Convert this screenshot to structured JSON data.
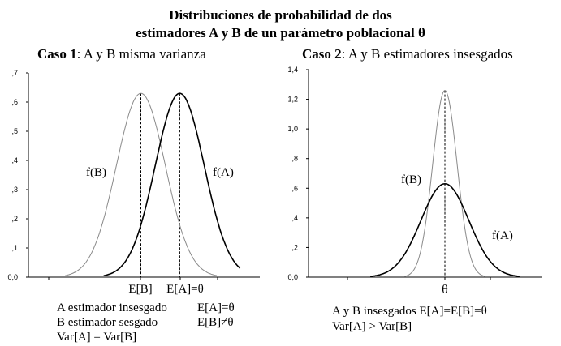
{
  "title": {
    "line1": "Distribuciones de probabilidad de dos",
    "line2": "estimadores A y B de un parámetro poblacional θ"
  },
  "chart_data": [
    {
      "type": "line",
      "heading_bold": "Caso 1",
      "heading_rest": ": A y B misma varianza",
      "ylim": [
        0,
        0.7
      ],
      "y_ticks": [
        "0,0",
        ",1",
        ",2",
        ",3",
        ",4",
        ",5",
        ",6",
        ",7"
      ],
      "x_tick_labels": [
        "E[B]",
        "E[A]=θ"
      ],
      "series": [
        {
          "name": "f(A)",
          "mean": 1.0,
          "sd": 0.63,
          "peak": 0.63,
          "color": "#000000",
          "width": 1.6
        },
        {
          "name": "f(B)",
          "mean": 0.0,
          "sd": 0.63,
          "peak": 0.63,
          "color": "#8a8a8a",
          "width": 1.0
        }
      ],
      "annotations": [
        {
          "left": "A estimador insesgado",
          "right": "E[A]=θ"
        },
        {
          "left": "B estimador sesgado",
          "right": "E[B]≠θ"
        },
        {
          "left": "Var[A] = Var[B]",
          "right": ""
        }
      ]
    },
    {
      "type": "line",
      "heading_bold": "Caso 2",
      "heading_rest": ": A y B estimadores insesgados",
      "ylim": [
        0,
        1.4
      ],
      "y_ticks": [
        "0,0",
        ",2",
        ",4",
        ",6",
        ",8",
        "1,0",
        "1,2",
        "1,4"
      ],
      "x_tick_labels": [
        "θ"
      ],
      "series": [
        {
          "name": "f(A)",
          "mean": 0.0,
          "sd": 0.63,
          "peak": 0.63,
          "color": "#000000",
          "width": 1.6
        },
        {
          "name": "f(B)",
          "mean": 0.0,
          "sd": 0.32,
          "peak": 1.26,
          "color": "#8a8a8a",
          "width": 1.0
        }
      ],
      "annotations": [
        {
          "left": "A y B insesgados  E[A]=E[B]=θ",
          "right": ""
        },
        {
          "left": "Var[A] > Var[B]",
          "right": ""
        }
      ]
    }
  ]
}
